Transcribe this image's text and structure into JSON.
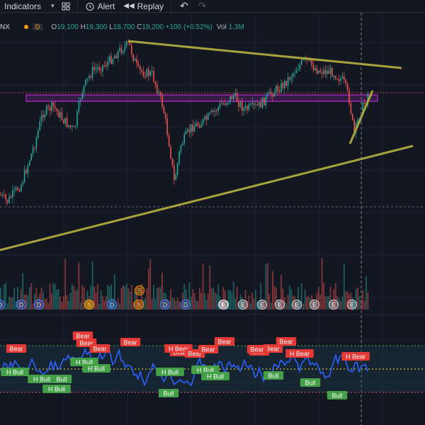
{
  "toolbar": {
    "indicators_label": "Indicators",
    "alert_label": "Alert",
    "replay_label": "Replay"
  },
  "legend": {
    "symbol": "NX",
    "exchange_badge": "D",
    "open_label": "O",
    "open": "19,100",
    "high_label": "H",
    "high": "19,300",
    "low_label": "L",
    "low": "18,700",
    "close_label": "C",
    "close": "19,200",
    "change": "+100 (+0.52%)",
    "volume_label": "Vol",
    "volume": "1.3M"
  },
  "event_markers": [
    "D",
    "D",
    "D",
    "S",
    "D",
    "S",
    "D",
    "D",
    "S",
    "S",
    "E",
    "E",
    "E",
    "E",
    "E",
    "E",
    "E",
    "E",
    "E"
  ],
  "oscillator_labels": {
    "bear": [
      "Bear",
      "Bear",
      "Bear",
      "Bear",
      "Bear",
      "Bear",
      "H Bear",
      "Bear",
      "Bear",
      "Bear",
      "Bear",
      "Bear",
      "Bear",
      "H Bear",
      "Bear",
      "H Bear"
    ],
    "bull": [
      "H Bull",
      "H Bull",
      "H Bull",
      "H Bull",
      "H Bull",
      "H Bull",
      "H Bull",
      "H Bull",
      "Bull",
      "Bull",
      "Bull",
      "Bull",
      "Bull"
    ]
  },
  "colors": {
    "background": "#131722",
    "up": "#26a69a",
    "down": "#ef5350",
    "trendline": "#a7a23b",
    "zone": "#9c27b0",
    "oscillator": "#2962ff",
    "event_marker": "#ff9800"
  }
}
